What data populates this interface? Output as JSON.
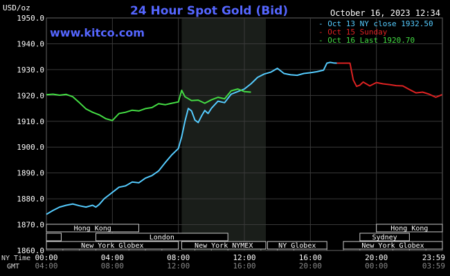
{
  "header": {
    "title": "24 Hour Spot Gold (Bid)",
    "unit": "USD/oz",
    "timestamp": "October 16, 2023 12:34",
    "site": "www.kitco.com"
  },
  "footer": {
    "nytime_label": "NY Time",
    "gmt_label": "GMT"
  },
  "colors": {
    "title": "#5566ff",
    "oct13": "#55ccff",
    "oct15": "#dd2222",
    "oct16": "#44dd44",
    "grid": "#3a3a3a",
    "shade": "#1a1e1a"
  },
  "sessions": [
    {
      "name": "Hong Kong",
      "start": 0.0,
      "end": 5.6,
      "row": 0
    },
    {
      "name": "",
      "start": 0.0,
      "end": 0.9,
      "row": 1
    },
    {
      "name": "London",
      "start": 3.0,
      "end": 11.0,
      "row": 1
    },
    {
      "name": "New York Globex",
      "start": 0.0,
      "end": 8.0,
      "row": 2
    },
    {
      "name": "New York NYMEX",
      "start": 8.2,
      "end": 13.3,
      "row": 2
    },
    {
      "name": "NY Globex",
      "start": 13.4,
      "end": 17.0,
      "row": 2
    },
    {
      "name": "Hong Kong",
      "start": 20.0,
      "end": 24.0,
      "row": 0
    },
    {
      "name": "Sydney",
      "start": 19.0,
      "end": 22.0,
      "row": 1
    },
    {
      "name": "New York Globex",
      "start": 18.0,
      "end": 24.0,
      "row": 2
    }
  ],
  "chart_data": {
    "type": "line",
    "title": "24 Hour Spot Gold (Bid)",
    "ylabel": "USD/oz",
    "ylim": [
      1860,
      1950
    ],
    "xlim": [
      0,
      24
    ],
    "yticks": [
      "1860.0",
      "1870.0",
      "1880.0",
      "1890.0",
      "1900.0",
      "1910.0",
      "1920.0",
      "1930.0",
      "1940.0",
      "1950.0"
    ],
    "xticks": [
      {
        "x": 0,
        "ny": "00:00",
        "gmt": "04:00"
      },
      {
        "x": 4,
        "ny": "04:00",
        "gmt": "08:00"
      },
      {
        "x": 8,
        "ny": "08:00",
        "gmt": "12:00"
      },
      {
        "x": 12,
        "ny": "12:00",
        "gmt": "16:00"
      },
      {
        "x": 16,
        "ny": "16:00",
        "gmt": "20:00"
      },
      {
        "x": 20,
        "ny": "20:00",
        "gmt": "00:00"
      },
      {
        "x": 23.98,
        "ny": "23:59",
        "gmt": "03:59"
      }
    ],
    "shaded_region": [
      8.2,
      13.3
    ],
    "grid": true,
    "legend_position": "top-right",
    "series": [
      {
        "name": "Oct 13 NY close 1932.50",
        "color": "#55ccff",
        "x": [
          0,
          0.4,
          0.8,
          1.2,
          1.6,
          2.0,
          2.4,
          2.8,
          3.0,
          3.2,
          3.5,
          3.8,
          4.0,
          4.4,
          4.8,
          5.2,
          5.6,
          6.0,
          6.4,
          6.8,
          7.2,
          7.6,
          8.0,
          8.2,
          8.4,
          8.6,
          8.8,
          9.0,
          9.2,
          9.4,
          9.6,
          9.8,
          10.0,
          10.4,
          10.8,
          11.2,
          11.6,
          12.0,
          12.4,
          12.8,
          13.2,
          13.6,
          14.0,
          14.4,
          14.8,
          15.2,
          15.6,
          16.0,
          16.4,
          16.8,
          17.0,
          17.2,
          17.4,
          17.6
        ],
        "y": [
          1874,
          1875.5,
          1876.8,
          1877.5,
          1878,
          1877.3,
          1876.8,
          1877.5,
          1876.8,
          1877.8,
          1880,
          1881.5,
          1882.5,
          1884.5,
          1885,
          1886.5,
          1886.2,
          1888,
          1889,
          1890.8,
          1894,
          1897,
          1899.5,
          1904,
          1910,
          1915,
          1914,
          1910.5,
          1909.5,
          1912,
          1914.2,
          1913,
          1915,
          1917.8,
          1917.2,
          1920.5,
          1921.5,
          1922.5,
          1924.5,
          1927,
          1928.3,
          1929,
          1930.5,
          1928.5,
          1928,
          1927.8,
          1928.5,
          1928.8,
          1929.2,
          1929.8,
          1932.5,
          1932.8,
          1932.6,
          1932.5
        ]
      },
      {
        "name": "Oct 15 Sunday",
        "color": "#dd2222",
        "x": [
          17.6,
          18.0,
          18.4,
          18.6,
          18.8,
          19.0,
          19.2,
          19.6,
          20.0,
          20.4,
          20.8,
          21.2,
          21.6,
          22.0,
          22.4,
          22.8,
          23.2,
          23.6,
          23.98
        ],
        "y": [
          1932.5,
          1932.5,
          1932.5,
          1926,
          1923.5,
          1924,
          1925.2,
          1923.7,
          1925,
          1924.5,
          1924.2,
          1923.8,
          1923.7,
          1922.3,
          1921,
          1921.3,
          1920.5,
          1919.3,
          1920.3
        ]
      },
      {
        "name": "Oct 16 Last 1920.70",
        "color": "#44dd44",
        "x": [
          0,
          0.4,
          0.8,
          1.2,
          1.6,
          2.0,
          2.4,
          2.8,
          3.2,
          3.6,
          4.0,
          4.4,
          4.8,
          5.2,
          5.6,
          6.0,
          6.4,
          6.8,
          7.2,
          7.6,
          8.0,
          8.2,
          8.4,
          8.8,
          9.2,
          9.6,
          10.0,
          10.4,
          10.8,
          11.2,
          11.6,
          12.0,
          12.4
        ],
        "y": [
          1920.3,
          1920.5,
          1920.1,
          1920.4,
          1919.5,
          1917.2,
          1914.8,
          1913.5,
          1912.5,
          1911,
          1910.3,
          1913,
          1913.5,
          1914.3,
          1914,
          1914.9,
          1915.3,
          1916.8,
          1916.4,
          1917,
          1917.5,
          1922,
          1919.5,
          1918,
          1918.2,
          1917,
          1918.3,
          1919.3,
          1918.7,
          1921.8,
          1922.5,
          1921.5,
          1921.3
        ]
      }
    ]
  }
}
